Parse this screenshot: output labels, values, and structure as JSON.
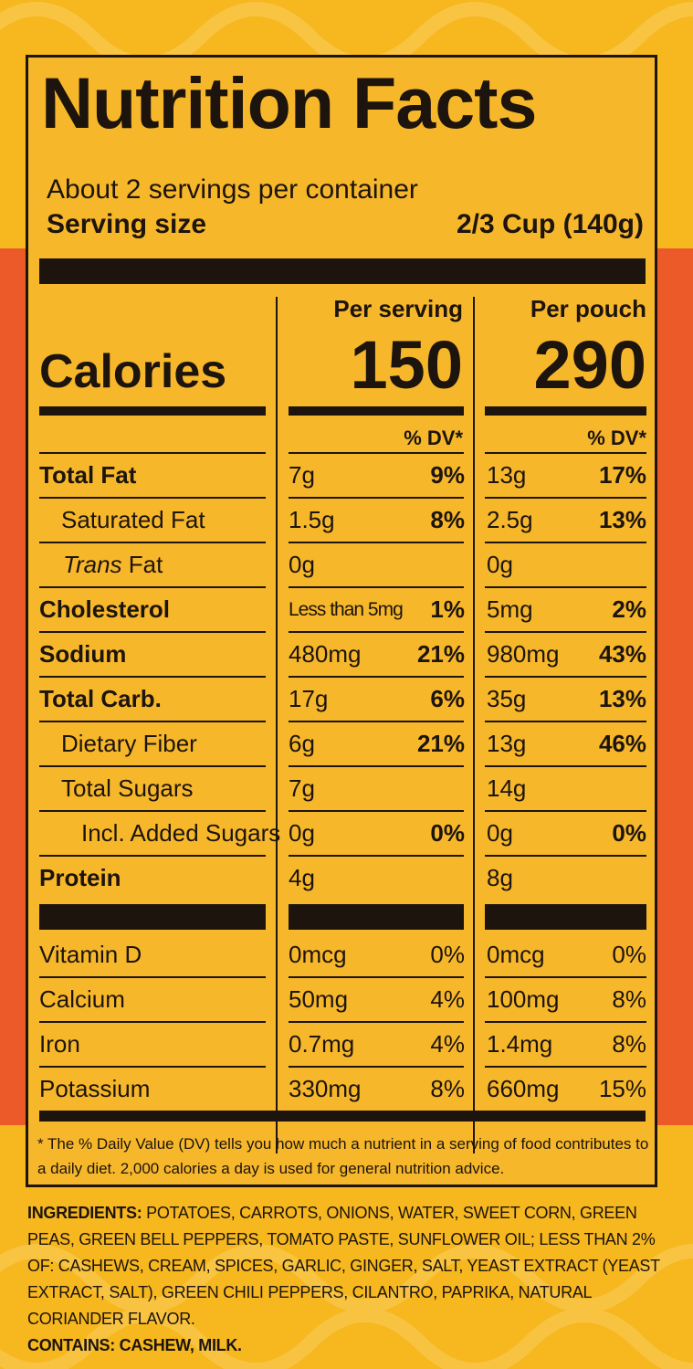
{
  "label": {
    "title": "Nutrition Facts",
    "servings_per_container": "About 2 servings per container",
    "serving_size_label": "Serving size",
    "serving_size_value": "2/3 Cup (140g)",
    "per_serving_label": "Per serving",
    "per_pouch_label": "Per pouch",
    "calories_label": "Calories",
    "calories_per_serving": "150",
    "calories_per_pouch": "290",
    "dv_header": "% DV*"
  },
  "nutrients": [
    {
      "name": "Total Fat",
      "serving_amount": "7g",
      "serving_dv": "9%",
      "pouch_amount": "13g",
      "pouch_dv": "17%"
    },
    {
      "name": "Saturated Fat",
      "serving_amount": "1.5g",
      "serving_dv": "8%",
      "pouch_amount": "2.5g",
      "pouch_dv": "13%"
    },
    {
      "name_italic": "Trans",
      "name_rest": " Fat",
      "serving_amount": "0g",
      "serving_dv": "",
      "pouch_amount": "0g",
      "pouch_dv": ""
    },
    {
      "name": "Cholesterol",
      "serving_amount": "Less than 5mg",
      "serving_dv": "1%",
      "pouch_amount": "5mg",
      "pouch_dv": "2%"
    },
    {
      "name": "Sodium",
      "serving_amount": "480mg",
      "serving_dv": "21%",
      "pouch_amount": "980mg",
      "pouch_dv": "43%"
    },
    {
      "name": "Total Carb.",
      "serving_amount": "17g",
      "serving_dv": "6%",
      "pouch_amount": "35g",
      "pouch_dv": "13%"
    },
    {
      "name": "Dietary Fiber",
      "serving_amount": "6g",
      "serving_dv": "21%",
      "pouch_amount": "13g",
      "pouch_dv": "46%"
    },
    {
      "name": "Total Sugars",
      "serving_amount": "7g",
      "serving_dv": "",
      "pouch_amount": "14g",
      "pouch_dv": ""
    },
    {
      "name": "Incl. Added Sugars",
      "serving_amount": "0g",
      "serving_dv": "0%",
      "pouch_amount": "0g",
      "pouch_dv": "0%"
    },
    {
      "name": "Protein",
      "serving_amount": "4g",
      "serving_dv": "",
      "pouch_amount": "8g",
      "pouch_dv": ""
    }
  ],
  "vitamins": [
    {
      "name": "Vitamin D",
      "serving_amount": "0mcg",
      "serving_dv": "0%",
      "pouch_amount": "0mcg",
      "pouch_dv": "0%"
    },
    {
      "name": "Calcium",
      "serving_amount": "50mg",
      "serving_dv": "4%",
      "pouch_amount": "100mg",
      "pouch_dv": "8%"
    },
    {
      "name": "Iron",
      "serving_amount": "0.7mg",
      "serving_dv": "4%",
      "pouch_amount": "1.4mg",
      "pouch_dv": "8%"
    },
    {
      "name": "Potassium",
      "serving_amount": "330mg",
      "serving_dv": "8%",
      "pouch_amount": "660mg",
      "pouch_dv": "15%"
    }
  ],
  "footnote": "* The % Daily Value (DV) tells you how much a nutrient in a serving of food contributes to a daily diet. 2,000 calories a day is used for general nutrition advice.",
  "ingredients": {
    "label": "INGREDIENTS:",
    "text": " POTATOES, CARROTS, ONIONS, WATER, SWEET CORN, GREEN PEAS, GREEN BELL PEPPERS, TOMATO PASTE, SUNFLOWER OIL; LESS THAN 2% OF: CASHEWS, CREAM, SPICES, GARLIC, GINGER, SALT, YEAST EXTRACT (YEAST EXTRACT, SALT), GREEN CHILI PEPPERS, CILANTRO, PAPRIKA, NATURAL CORIANDER FLAVOR.",
    "contains": "CONTAINS: CASHEW, MILK."
  },
  "colors": {
    "background": "#f6b71f",
    "panel": "#f7b72b",
    "band": "#ec5a2a",
    "ink": "#1c140d"
  }
}
